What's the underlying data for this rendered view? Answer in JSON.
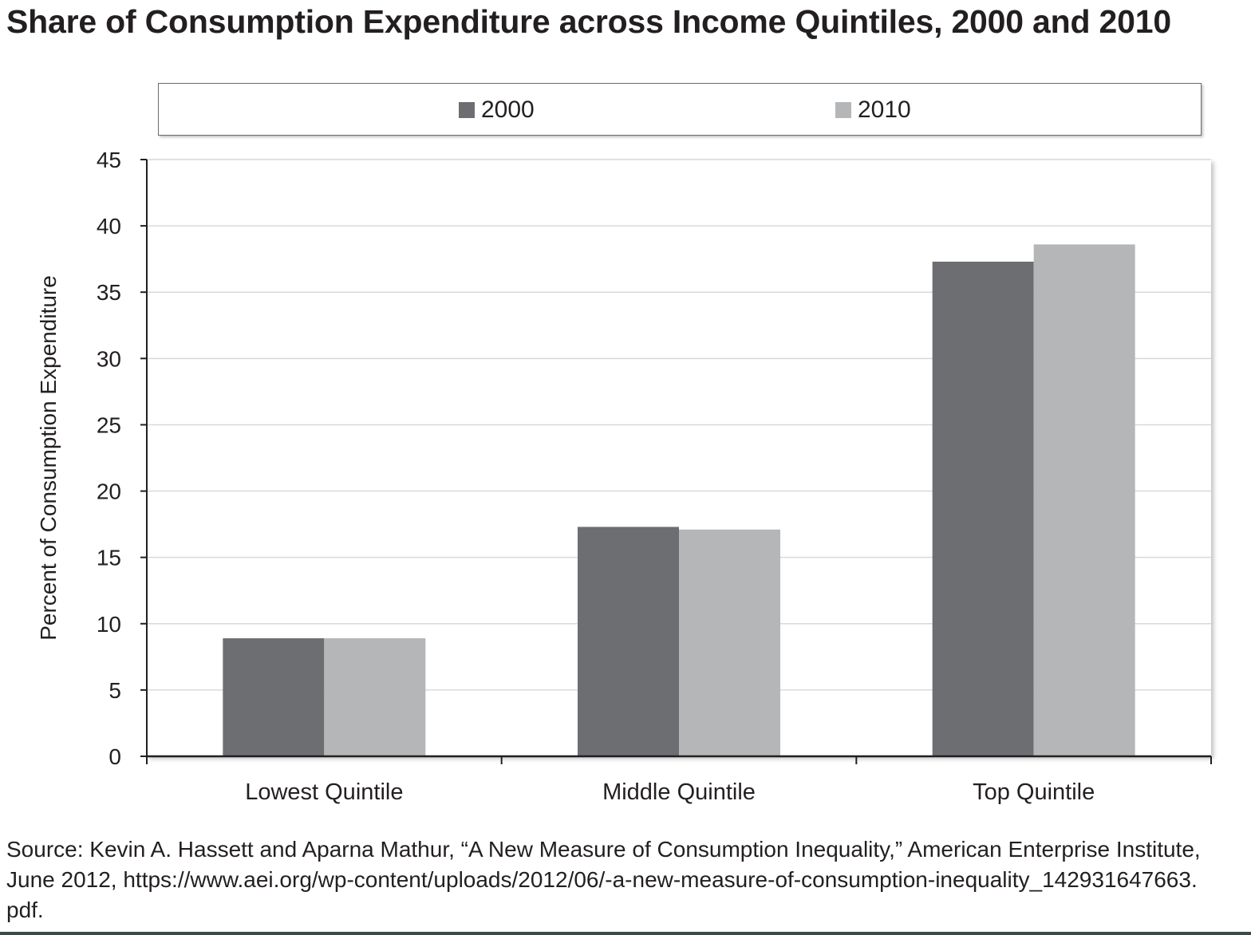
{
  "title": "Share of Consumption Expenditure across Income Quintiles, 2000 and 2010",
  "chart_data": {
    "type": "bar",
    "title": "Share of Consumption Expenditure across Income Quintiles, 2000 and 2010",
    "xlabel": "",
    "ylabel": "Percent of Consumption Expenditure",
    "categories": [
      "Lowest Quintile",
      "Middle Quintile",
      "Top Quintile"
    ],
    "series": [
      {
        "name": "2000",
        "values": [
          8.9,
          17.3,
          37.3
        ],
        "color": "#6d6e71"
      },
      {
        "name": "2010",
        "values": [
          8.9,
          17.1,
          38.6
        ],
        "color": "#b5b6b8"
      }
    ],
    "ylim": [
      0,
      45
    ],
    "yticks": [
      "0",
      "5",
      "10",
      "15",
      "20",
      "25",
      "30",
      "35",
      "40",
      "45"
    ],
    "grid": true,
    "legend": "top"
  },
  "source": {
    "line1": "Source: Kevin A. Hassett and Aparna Mathur, “A New Measure of Consumption Inequality,” American Enterprise Institute,",
    "line2": "June 2012, https://www.aei.org/wp-content/uploads/2012/06/-a-new-measure-of-consumption-inequality_142931647663.",
    "line3": "pdf."
  }
}
